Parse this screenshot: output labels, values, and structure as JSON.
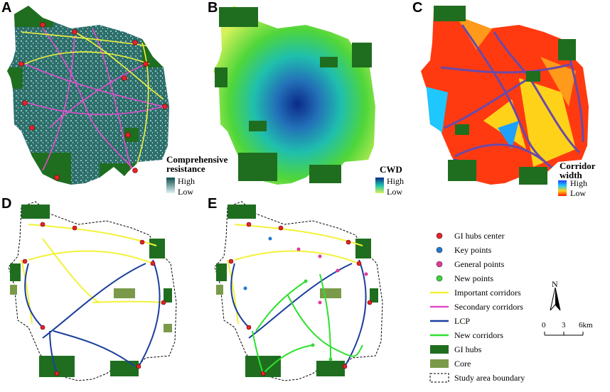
{
  "panels": {
    "a": {
      "label": "A",
      "legend_title": "Comprehensive resistance",
      "high": "High",
      "low": "Low",
      "ramp": [
        "#0f4f4f",
        "#dff2f2"
      ]
    },
    "b": {
      "label": "B",
      "legend_title": "CWD",
      "high": "High",
      "low": "Low",
      "ramp": [
        "#0a2a8a",
        "#d6f25a"
      ]
    },
    "c": {
      "label": "C",
      "legend_title": "Corridor width",
      "high": "High",
      "low": "Low",
      "ramp": [
        "#1e3cff",
        "#ff1a00"
      ]
    },
    "d": {
      "label": "D"
    },
    "e": {
      "label": "E"
    }
  },
  "legend": {
    "items": [
      {
        "kind": "dot",
        "color": "#e8202a",
        "label": "GI hubs center"
      },
      {
        "kind": "dot",
        "color": "#1f78d1",
        "label": "Key points"
      },
      {
        "kind": "dot",
        "color": "#e0399b",
        "label": "General points"
      },
      {
        "kind": "dot",
        "color": "#39d639",
        "label": "New points"
      },
      {
        "kind": "line",
        "color": "#f2f23a",
        "label": "Important corridors"
      },
      {
        "kind": "line",
        "color": "#e44ad0",
        "label": "Secondary corridors"
      },
      {
        "kind": "line",
        "color": "#1c3f9e",
        "label": "LCP"
      },
      {
        "kind": "line",
        "color": "#2fe02f",
        "label": "New corridors"
      },
      {
        "kind": "rect",
        "color": "#1f6e1f",
        "label": "GI hubs"
      },
      {
        "kind": "rect",
        "color": "#7a9a4a",
        "label": "Core"
      },
      {
        "kind": "boundary",
        "color": "#000000",
        "label": "Study area boundary"
      }
    ]
  },
  "north_arrow": {
    "label": "N"
  },
  "scale_bar": {
    "ticks": [
      "0",
      "3",
      "6km"
    ]
  },
  "colors": {
    "gi_hub": "#1f6e1f",
    "resistance_base": "#2e6f6b",
    "important": "#f2f23a",
    "secondary": "#e44ad0",
    "lcp": "#1c3f9e",
    "new_corridor": "#2fe02f",
    "hub_center": "#e8202a"
  }
}
